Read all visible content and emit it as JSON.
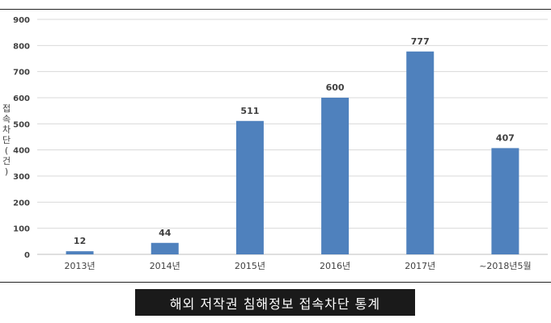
{
  "chart_data": {
    "type": "bar",
    "categories": [
      "2013년",
      "2014년",
      "2015년",
      "2016년",
      "2017년",
      "~2018년5월"
    ],
    "values": [
      12,
      44,
      511,
      600,
      777,
      407
    ],
    "ylabel": "접속차단(건)",
    "ylim": [
      0,
      900
    ],
    "yticks": [
      0,
      100,
      200,
      300,
      400,
      500,
      600,
      700,
      800,
      900
    ],
    "grid": true,
    "bar_color": "#4f81bd"
  },
  "caption": "해외 저작권 침해정보 접속차단 통계"
}
